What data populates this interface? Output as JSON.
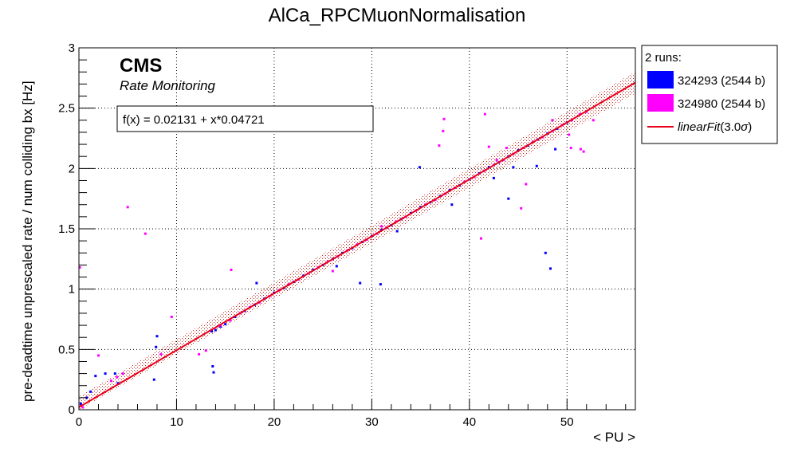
{
  "chart_data": {
    "type": "scatter",
    "title": "AlCa_RPCMuonNormalisation",
    "xlabel": "< PU >",
    "ylabel": "pre-deadtime unprescaled rate / num colliding bx [Hz]",
    "xlim": [
      0,
      57
    ],
    "ylim": [
      0,
      3
    ],
    "x_ticks": [
      0,
      10,
      20,
      30,
      40,
      50
    ],
    "y_ticks": [
      0,
      0.5,
      1,
      1.5,
      2,
      2.5,
      3
    ],
    "y_tick_labels": [
      "0",
      "0.5",
      "1",
      "1.5",
      "2",
      "2.5",
      "3"
    ],
    "grid": true,
    "experiment_label": "CMS",
    "experiment_sublabel": "Rate Monitoring",
    "fit_text": "f(x) = 0.02131 + x*0.04721",
    "fit": {
      "intercept": 0.02131,
      "slope": 0.04721,
      "band_sigma": 3.0,
      "band_halfwidth": 0.09,
      "color": "#e8001c"
    },
    "legend": {
      "position": "top-right-outside",
      "header": "2 runs:",
      "entries": [
        {
          "label": "324293 (2544 b)",
          "color": "#0000ff",
          "kind": "box"
        },
        {
          "label": "324980 (2544 b)",
          "color": "#ff00ff",
          "kind": "box"
        },
        {
          "label": "linearFit",
          "label_suffix": "(3.0",
          "label_sigma": "σ",
          "label_end": ")",
          "color": "#e8001c",
          "kind": "line"
        }
      ]
    },
    "series": [
      {
        "name": "324293 (2544 b)",
        "color": "#0000ff",
        "points": [
          [
            13.6,
            0.65
          ],
          [
            14.0,
            0.66
          ],
          [
            14.5,
            0.69
          ],
          [
            15.0,
            0.71
          ],
          [
            16.0,
            0.77
          ],
          [
            17.0,
            0.82
          ],
          [
            18.0,
            0.87
          ],
          [
            19.0,
            0.92
          ],
          [
            20.0,
            0.97
          ],
          [
            21.0,
            1.01
          ],
          [
            22.0,
            1.06
          ],
          [
            23.0,
            1.11
          ],
          [
            24.0,
            1.16
          ],
          [
            25.0,
            1.2
          ],
          [
            26.0,
            1.25
          ],
          [
            27.0,
            1.3
          ],
          [
            28.0,
            1.34
          ],
          [
            29.0,
            1.39
          ],
          [
            30.0,
            1.44
          ],
          [
            31.0,
            1.49
          ],
          [
            32.0,
            1.53
          ],
          [
            33.0,
            1.58
          ],
          [
            34.0,
            1.63
          ],
          [
            35.0,
            1.68
          ],
          [
            36.0,
            1.72
          ],
          [
            37.0,
            1.77
          ],
          [
            38.0,
            1.82
          ],
          [
            39.0,
            1.86
          ],
          [
            40.0,
            1.91
          ],
          [
            41.0,
            1.96
          ],
          [
            42.0,
            2.01
          ],
          [
            43.0,
            2.05
          ],
          [
            44.0,
            2.1
          ],
          [
            45.0,
            2.15
          ],
          [
            46.0,
            2.19
          ],
          [
            47.0,
            2.24
          ],
          [
            48.0,
            2.29
          ],
          [
            49.0,
            2.33
          ],
          [
            50.0,
            2.38
          ],
          [
            0.2,
            0.05
          ],
          [
            0.8,
            0.1
          ],
          [
            1.2,
            0.15
          ],
          [
            1.7,
            0.28
          ],
          [
            2.7,
            0.3
          ],
          [
            3.7,
            0.3
          ],
          [
            4.0,
            0.22
          ],
          [
            7.7,
            0.25
          ],
          [
            7.9,
            0.52
          ],
          [
            8.0,
            0.61
          ],
          [
            13.7,
            0.36
          ],
          [
            13.8,
            0.31
          ],
          [
            18.2,
            1.05
          ],
          [
            28.8,
            1.05
          ],
          [
            30.9,
            1.04
          ],
          [
            34.9,
            2.01
          ],
          [
            38.2,
            1.7
          ],
          [
            42.5,
            1.92
          ],
          [
            44.0,
            1.75
          ],
          [
            47.8,
            1.3
          ],
          [
            48.3,
            1.17
          ],
          [
            32.6,
            1.48
          ],
          [
            26.4,
            1.19
          ],
          [
            44.5,
            2.01
          ],
          [
            46.9,
            2.02
          ],
          [
            48.8,
            2.16
          ]
        ]
      },
      {
        "name": "324980 (2544 b)",
        "color": "#ff00ff",
        "points": [
          [
            14.5,
            0.7
          ],
          [
            15.5,
            0.74
          ],
          [
            16.5,
            0.8
          ],
          [
            17.5,
            0.85
          ],
          [
            18.5,
            0.89
          ],
          [
            19.5,
            0.94
          ],
          [
            20.5,
            0.99
          ],
          [
            21.5,
            1.04
          ],
          [
            22.5,
            1.08
          ],
          [
            23.5,
            1.13
          ],
          [
            24.5,
            1.18
          ],
          [
            25.5,
            1.23
          ],
          [
            26.5,
            1.27
          ],
          [
            27.5,
            1.32
          ],
          [
            28.5,
            1.37
          ],
          [
            29.5,
            1.41
          ],
          [
            30.5,
            1.46
          ],
          [
            31.5,
            1.51
          ],
          [
            32.5,
            1.56
          ],
          [
            33.5,
            1.6
          ],
          [
            34.5,
            1.65
          ],
          [
            35.5,
            1.7
          ],
          [
            36.5,
            1.74
          ],
          [
            37.5,
            1.79
          ],
          [
            38.5,
            1.84
          ],
          [
            39.5,
            1.89
          ],
          [
            40.5,
            1.93
          ],
          [
            41.5,
            1.98
          ],
          [
            42.5,
            2.03
          ],
          [
            43.5,
            2.07
          ],
          [
            44.5,
            2.12
          ],
          [
            45.5,
            2.17
          ],
          [
            46.5,
            2.22
          ],
          [
            47.5,
            2.26
          ],
          [
            48.5,
            2.31
          ],
          [
            49.5,
            2.36
          ],
          [
            50.5,
            2.4
          ],
          [
            51.3,
            2.45
          ],
          [
            0.1,
            1.18
          ],
          [
            0.4,
            0.02
          ],
          [
            2.0,
            0.45
          ],
          [
            3.3,
            0.24
          ],
          [
            3.9,
            0.27
          ],
          [
            4.5,
            0.3
          ],
          [
            5.0,
            1.68
          ],
          [
            6.8,
            1.46
          ],
          [
            8.4,
            0.46
          ],
          [
            9.5,
            0.77
          ],
          [
            12.3,
            0.46
          ],
          [
            13.0,
            0.49
          ],
          [
            15.6,
            1.16
          ],
          [
            36.9,
            2.19
          ],
          [
            37.3,
            2.31
          ],
          [
            37.4,
            2.41
          ],
          [
            41.2,
            1.42
          ],
          [
            41.6,
            2.45
          ],
          [
            42.8,
            2.07
          ],
          [
            45.3,
            1.67
          ],
          [
            45.8,
            1.87
          ],
          [
            50.2,
            2.28
          ],
          [
            50.4,
            2.17
          ],
          [
            51.4,
            2.16
          ],
          [
            51.7,
            2.14
          ],
          [
            48.5,
            2.4
          ],
          [
            52.0,
            2.47
          ],
          [
            52.7,
            2.4
          ],
          [
            43.8,
            2.17
          ],
          [
            42.0,
            2.18
          ],
          [
            26.0,
            1.15
          ],
          [
            31.0,
            1.52
          ]
        ]
      }
    ]
  }
}
